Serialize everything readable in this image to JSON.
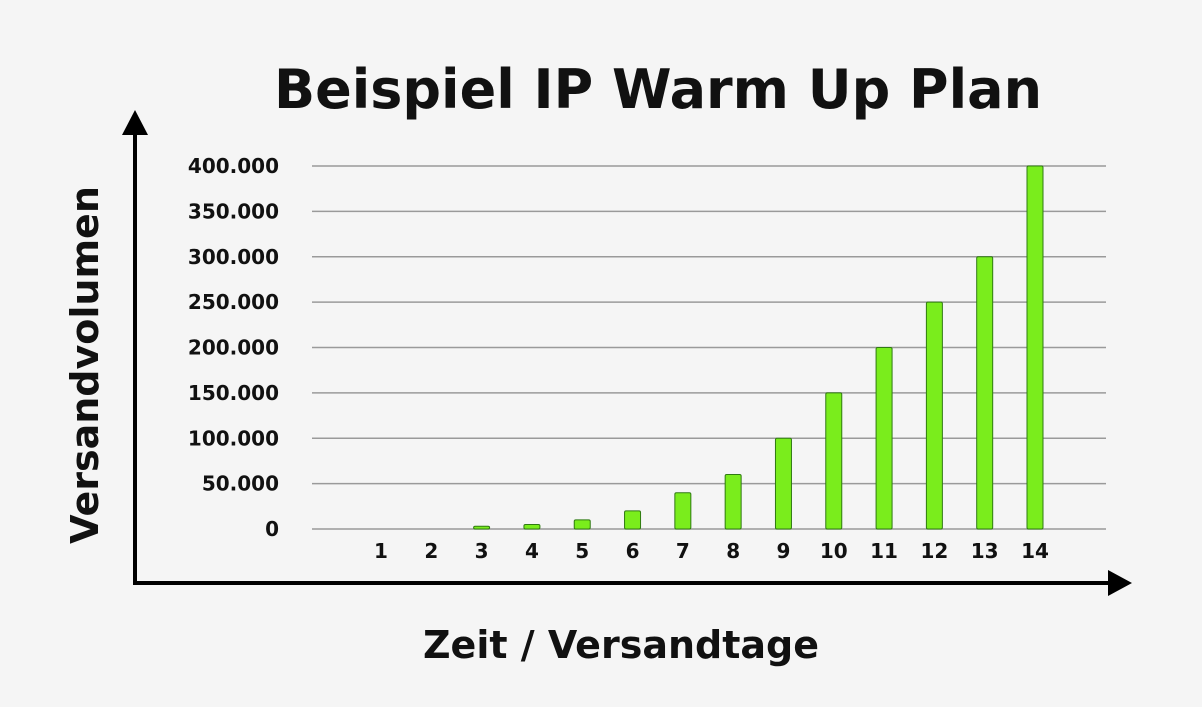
{
  "chart_data": {
    "type": "bar",
    "title": "Beispiel IP Warm Up Plan",
    "xlabel": "Zeit / Versandtage",
    "ylabel": "Versandvolumen",
    "categories": [
      "1",
      "2",
      "3",
      "4",
      "5",
      "6",
      "7",
      "8",
      "9",
      "10",
      "11",
      "12",
      "13",
      "14"
    ],
    "values": [
      0,
      0,
      3000,
      5000,
      10000,
      20000,
      40000,
      60000,
      100000,
      150000,
      200000,
      250000,
      300000,
      400000
    ],
    "ylim": [
      0,
      400000
    ],
    "yticks": [
      0,
      50000,
      100000,
      150000,
      200000,
      250000,
      300000,
      350000,
      400000
    ],
    "ytick_labels": [
      "0",
      "50.000",
      "100.000",
      "150.000",
      "200.000",
      "250.000",
      "300.000",
      "350.000",
      "400.000"
    ],
    "grid": true,
    "legend": "none",
    "bar_color": "#7aed1c"
  }
}
